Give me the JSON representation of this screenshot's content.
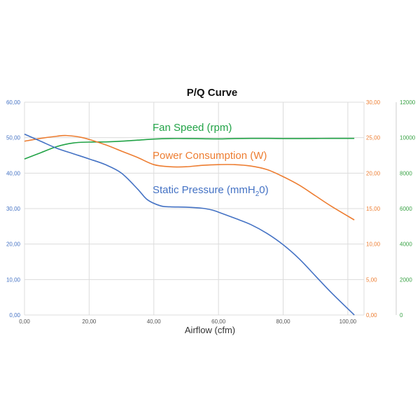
{
  "chart_data": {
    "type": "line",
    "title": "P/Q Curve",
    "xlabel": "Airflow (cfm)",
    "xlim": [
      0,
      105
    ],
    "x_ticks": [
      "0,00",
      "20,00",
      "40,00",
      "60,00",
      "80,00",
      "100,00"
    ],
    "x_tick_values": [
      0,
      20,
      40,
      60,
      80,
      100
    ],
    "grid": true,
    "axes": {
      "left": {
        "ylim": [
          0,
          60
        ],
        "ticks": [
          "0,00",
          "10,00",
          "20,00",
          "30,00",
          "40,00",
          "50,00",
          "60,00"
        ],
        "values": [
          0,
          10,
          20,
          30,
          40,
          50,
          60
        ],
        "color": "#4472c4"
      },
      "right1": {
        "ylim": [
          0,
          30
        ],
        "ticks": [
          "0,00",
          "5,00",
          "10,00",
          "15,00",
          "20,00",
          "25,00",
          "30,00"
        ],
        "values": [
          0,
          5,
          10,
          15,
          20,
          25,
          30
        ],
        "color": "#ed7d31"
      },
      "right2": {
        "ylim": [
          0,
          12000
        ],
        "ticks": [
          "0",
          "2000",
          "4000",
          "6000",
          "8000",
          "10000",
          "12000"
        ],
        "values": [
          0,
          2000,
          4000,
          6000,
          8000,
          10000,
          12000
        ],
        "color": "#3aa346"
      }
    },
    "series": [
      {
        "name": "Fan Speed (rpm)",
        "axis": "right2",
        "color": "#22a347",
        "x": [
          0,
          5,
          10,
          15,
          20,
          25,
          30,
          35,
          40,
          45,
          50,
          55,
          60,
          65,
          70,
          75,
          80,
          85,
          90,
          95,
          102
        ],
        "y": [
          8800,
          9150,
          9500,
          9700,
          9750,
          9760,
          9800,
          9860,
          9920,
          9950,
          9950,
          9940,
          9930,
          9950,
          9960,
          9960,
          9950,
          9950,
          9955,
          9960,
          9960
        ]
      },
      {
        "name": "Power Consumption (W)",
        "axis": "right1",
        "color": "#ed7d31",
        "x": [
          0,
          5,
          10,
          13,
          18,
          25,
          30,
          35,
          40,
          45,
          50,
          55,
          60,
          65,
          70,
          75,
          80,
          85,
          90,
          95,
          102
        ],
        "y": [
          24.5,
          24.9,
          25.2,
          25.3,
          25.0,
          24.0,
          23.1,
          22.2,
          21.2,
          20.9,
          20.9,
          21.1,
          21.2,
          21.2,
          21.0,
          20.5,
          19.5,
          18.3,
          16.8,
          15.3,
          13.4
        ]
      },
      {
        "name": "Static Pressure (mmH",
        "name_sub": "2",
        "name_suffix": "0)",
        "axis": "left",
        "color": "#4472c4",
        "x": [
          0,
          5,
          10,
          15,
          20,
          25,
          30,
          35,
          38,
          42,
          45,
          50,
          55,
          58,
          60,
          65,
          70,
          75,
          80,
          85,
          90,
          95,
          102
        ],
        "y": [
          51.0,
          49.0,
          47.0,
          45.5,
          44.0,
          42.4,
          40.0,
          35.5,
          32.5,
          30.8,
          30.5,
          30.4,
          30.1,
          29.6,
          29.0,
          27.3,
          25.5,
          23.0,
          19.8,
          15.8,
          11.0,
          6.2,
          0.0
        ]
      }
    ]
  }
}
